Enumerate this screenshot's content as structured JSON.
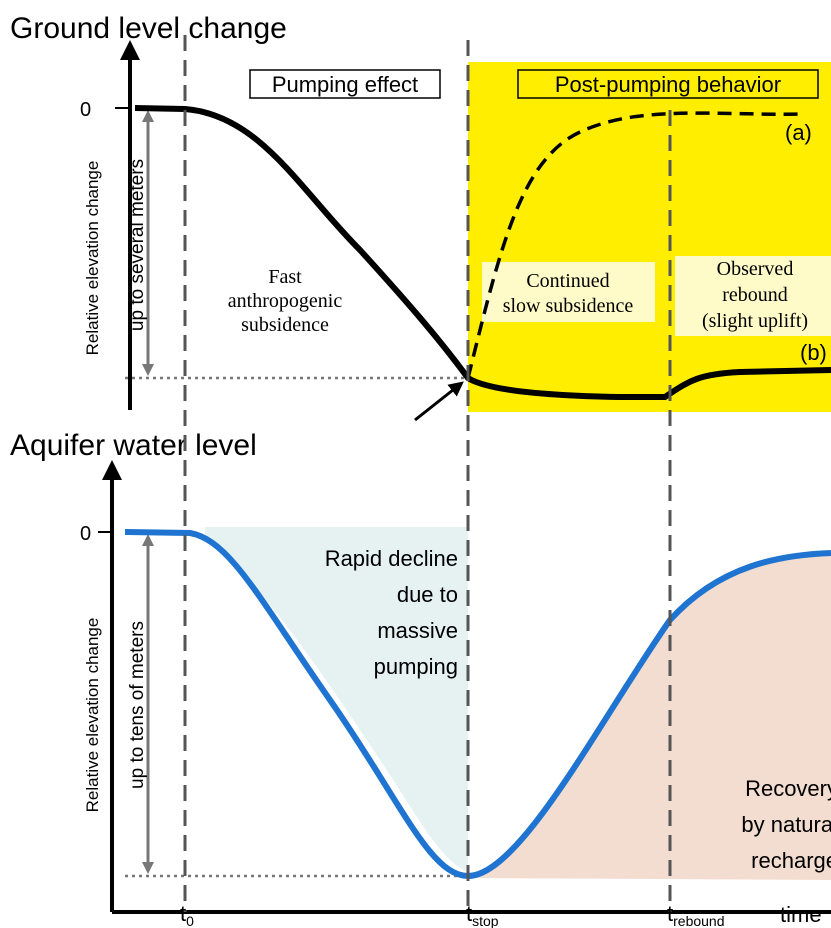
{
  "top_panel": {
    "title": "Ground level change",
    "phase_left": "Pumping effect",
    "phase_right": "Post-pumping behavior",
    "zero_label": "0",
    "y_label": "Relative elevation change",
    "range_label": "up to several meters",
    "curve_a": "(a)",
    "curve_b": "(b)",
    "note_fast": [
      "Fast",
      "anthropogenic",
      "subsidence"
    ],
    "note_continued": [
      "Continued",
      "slow  subsidence"
    ],
    "note_rebound": [
      "Observed",
      "rebound",
      "(slight uplift)"
    ]
  },
  "bottom_panel": {
    "title": "Aquifer water level",
    "zero_label": "0",
    "y_label": "Relative elevation change",
    "range_label": "up to tens of meters",
    "note_decline": [
      "Rapid decline",
      "due to",
      "massive",
      "pumping"
    ],
    "note_recovery": [
      "Recovery",
      "by natural",
      "recharge"
    ]
  },
  "x_axis": {
    "ticks": [
      {
        "main": "t",
        "sub": "0"
      },
      {
        "main": "t",
        "sub": "stop"
      },
      {
        "main": "t",
        "sub": "rebound"
      }
    ],
    "title": "time"
  }
}
